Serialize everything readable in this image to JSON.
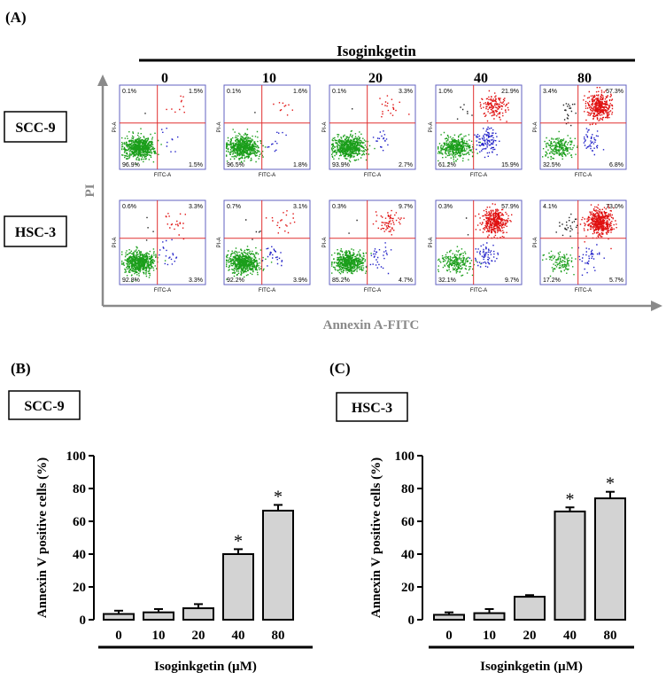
{
  "panel_labels": {
    "a": "(A)",
    "b": "(B)",
    "c": "(C)"
  },
  "flow": {
    "treatment_label": "Isoginkgetin",
    "concentrations": [
      "0",
      "10",
      "20",
      "40",
      "80"
    ],
    "y_axis_label": "PI",
    "x_axis_label": "Annexin A-FITC",
    "plot_x_label": "FITC-A",
    "plot_y_label": "PI-A",
    "colors": {
      "live": "#1a9e1a",
      "early": "#2020c8",
      "late": "#e01010",
      "necrotic": "#222222",
      "gate": "#e03030",
      "axis_frame": "#6060c0"
    },
    "rows": [
      {
        "cell_line": "SCC-9",
        "plots": [
          {
            "ul": "0.1%",
            "ur": "1.5%",
            "ll": "96.9%",
            "lr": "1.5%"
          },
          {
            "ul": "0.1%",
            "ur": "1.6%",
            "ll": "96.5%",
            "lr": "1.8%"
          },
          {
            "ul": "0.1%",
            "ur": "3.3%",
            "ll": "93.9%",
            "lr": "2.7%"
          },
          {
            "ul": "1.0%",
            "ur": "21.9%",
            "ll": "61.2%",
            "lr": "15.9%"
          },
          {
            "ul": "3.4%",
            "ur": "57.3%",
            "ll": "32.5%",
            "lr": "6.8%"
          }
        ]
      },
      {
        "cell_line": "HSC-3",
        "plots": [
          {
            "ul": "0.6%",
            "ur": "3.3%",
            "ll": "92.8%",
            "lr": "3.3%"
          },
          {
            "ul": "0.7%",
            "ur": "3.1%",
            "ll": "92.2%",
            "lr": "3.9%"
          },
          {
            "ul": "0.3%",
            "ur": "9.7%",
            "ll": "85.2%",
            "lr": "4.7%"
          },
          {
            "ul": "0.3%",
            "ur": "57.9%",
            "ll": "32.1%",
            "lr": "9.7%"
          },
          {
            "ul": "4.1%",
            "ur": "73.0%",
            "ll": "17.2%",
            "lr": "5.7%"
          }
        ]
      }
    ]
  },
  "chart_data": [
    {
      "type": "bar",
      "panel": "(B)",
      "cell_line": "SCC-9",
      "categories": [
        "0",
        "10",
        "20",
        "40",
        "80"
      ],
      "values": [
        3.5,
        4.5,
        7,
        40,
        66.5
      ],
      "errors": [
        2,
        2,
        2.5,
        3,
        3.5
      ],
      "significance": [
        "",
        "",
        "",
        "*",
        "*"
      ],
      "ylabel": "Annexin V positive cells (%)",
      "xlabel": "Isoginkgetin (µM)",
      "ylim": [
        0,
        100
      ],
      "yticks": [
        "0",
        "20",
        "40",
        "60",
        "80",
        "100"
      ],
      "bar_color": "#d3d3d3"
    },
    {
      "type": "bar",
      "panel": "(C)",
      "cell_line": "HSC-3",
      "categories": [
        "0",
        "10",
        "20",
        "40",
        "80"
      ],
      "values": [
        3,
        4,
        14,
        66,
        74
      ],
      "errors": [
        1.5,
        2.5,
        1,
        2.5,
        4
      ],
      "significance": [
        "",
        "",
        "",
        "*",
        "*"
      ],
      "ylabel": "Annexin V positive cells (%)",
      "xlabel": "Isoginkgetin (µM)",
      "ylim": [
        0,
        100
      ],
      "yticks": [
        "0",
        "20",
        "40",
        "60",
        "80",
        "100"
      ],
      "bar_color": "#d3d3d3"
    }
  ]
}
